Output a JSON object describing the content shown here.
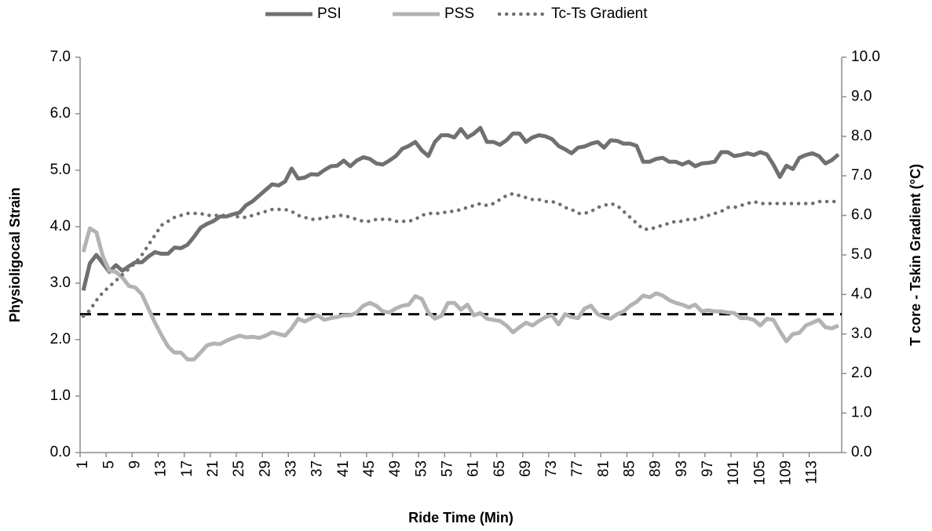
{
  "chart_data": {
    "type": "line",
    "xlabel": "Ride Time (Min)",
    "ylabel": "Physioligocal Strain",
    "y2label": "T core - Tskin Gradient (°C)",
    "categories": [
      "1",
      null,
      null,
      null,
      "5",
      null,
      null,
      null,
      "9",
      null,
      null,
      null,
      "13",
      null,
      null,
      null,
      "17",
      null,
      null,
      null,
      "21",
      null,
      null,
      null,
      "25",
      null,
      null,
      null,
      "29",
      null,
      null,
      null,
      "33",
      null,
      null,
      null,
      "37",
      null,
      null,
      null,
      "41",
      null,
      null,
      null,
      "45",
      null,
      null,
      null,
      "49",
      null,
      null,
      null,
      "53",
      null,
      null,
      null,
      "57",
      null,
      null,
      null,
      "61",
      null,
      null,
      null,
      "65",
      null,
      null,
      null,
      "69",
      null,
      null,
      null,
      "73",
      null,
      null,
      null,
      "77",
      null,
      null,
      null,
      "81",
      null,
      null,
      null,
      "85",
      null,
      null,
      null,
      "89",
      null,
      null,
      null,
      "93",
      null,
      null,
      null,
      "97",
      null,
      null,
      null,
      "101",
      null,
      null,
      null,
      "105",
      null,
      null,
      null,
      "109",
      null,
      null,
      null,
      "113",
      null,
      null,
      null,
      null
    ],
    "ylim": [
      0,
      7
    ],
    "yticks": [
      {
        "value": 0,
        "label": "0.0"
      },
      {
        "value": 1,
        "label": "1.0"
      },
      {
        "value": 2,
        "label": "2.0"
      },
      {
        "value": 3,
        "label": "3.0"
      },
      {
        "value": 4,
        "label": "4.0"
      },
      {
        "value": 5,
        "label": "5.0"
      },
      {
        "value": 6,
        "label": "6.0"
      },
      {
        "value": 7,
        "label": "7.0"
      }
    ],
    "y2lim": [
      0,
      10
    ],
    "y2ticks": [
      {
        "value": 0,
        "label": "0.0"
      },
      {
        "value": 1,
        "label": "1.0"
      },
      {
        "value": 2,
        "label": "2.0"
      },
      {
        "value": 3,
        "label": "3.0"
      },
      {
        "value": 4,
        "label": "4.0"
      },
      {
        "value": 5,
        "label": "5.0"
      },
      {
        "value": 6,
        "label": "6.0"
      },
      {
        "value": 7,
        "label": "7.0"
      },
      {
        "value": 8,
        "label": "8.0"
      },
      {
        "value": 9,
        "label": "9.0"
      },
      {
        "value": 10,
        "label": "10.0"
      }
    ],
    "legend": "top",
    "reference_line": {
      "value": 3.5,
      "axis": "y2",
      "color": "#000000",
      "style": "dashed"
    },
    "series": [
      {
        "name": "PSI",
        "color": "#707070",
        "style": "solid",
        "values": [
          2.87,
          3.35,
          3.5,
          3.35,
          3.2,
          3.32,
          3.22,
          3.3,
          3.37,
          3.37,
          3.47,
          3.55,
          3.52,
          3.52,
          3.63,
          3.62,
          3.68,
          3.82,
          3.98,
          4.05,
          4.1,
          4.18,
          4.18,
          4.22,
          4.25,
          4.38,
          4.45,
          4.55,
          4.65,
          4.75,
          4.73,
          4.8,
          5.03,
          4.85,
          4.87,
          4.93,
          4.92,
          5.0,
          5.07,
          5.08,
          5.17,
          5.07,
          5.17,
          5.23,
          5.2,
          5.12,
          5.1,
          5.17,
          5.25,
          5.38,
          5.43,
          5.5,
          5.35,
          5.25,
          5.5,
          5.62,
          5.62,
          5.58,
          5.73,
          5.58,
          5.65,
          5.75,
          5.5,
          5.5,
          5.45,
          5.53,
          5.65,
          5.65,
          5.5,
          5.58,
          5.62,
          5.6,
          5.55,
          5.43,
          5.37,
          5.3,
          5.4,
          5.42,
          5.47,
          5.5,
          5.4,
          5.53,
          5.52,
          5.47,
          5.47,
          5.43,
          5.15,
          5.15,
          5.2,
          5.22,
          5.15,
          5.15,
          5.1,
          5.15,
          5.07,
          5.12,
          5.13,
          5.15,
          5.32,
          5.32,
          5.25,
          5.27,
          5.3,
          5.27,
          5.32,
          5.28,
          5.1,
          4.88,
          5.08,
          5.02,
          5.22,
          5.27,
          5.3,
          5.25,
          5.12,
          5.18,
          5.28
        ]
      },
      {
        "name": "PSS",
        "color": "#b3b3b3",
        "style": "solid",
        "values": [
          3.55,
          3.97,
          3.9,
          3.47,
          3.22,
          3.2,
          3.1,
          2.95,
          2.92,
          2.8,
          2.55,
          2.3,
          2.08,
          1.88,
          1.77,
          1.77,
          1.65,
          1.65,
          1.77,
          1.9,
          1.93,
          1.92,
          1.98,
          2.03,
          2.07,
          2.04,
          2.05,
          2.03,
          2.07,
          2.13,
          2.1,
          2.07,
          2.2,
          2.37,
          2.32,
          2.38,
          2.43,
          2.35,
          2.38,
          2.4,
          2.43,
          2.43,
          2.48,
          2.6,
          2.65,
          2.6,
          2.5,
          2.48,
          2.55,
          2.6,
          2.62,
          2.77,
          2.72,
          2.48,
          2.37,
          2.42,
          2.65,
          2.65,
          2.53,
          2.62,
          2.43,
          2.47,
          2.37,
          2.35,
          2.33,
          2.25,
          2.13,
          2.22,
          2.3,
          2.25,
          2.33,
          2.4,
          2.43,
          2.27,
          2.45,
          2.4,
          2.38,
          2.55,
          2.6,
          2.45,
          2.4,
          2.37,
          2.45,
          2.5,
          2.6,
          2.67,
          2.78,
          2.75,
          2.82,
          2.78,
          2.7,
          2.65,
          2.62,
          2.57,
          2.62,
          2.5,
          2.52,
          2.5,
          2.5,
          2.48,
          2.47,
          2.38,
          2.38,
          2.35,
          2.25,
          2.37,
          2.35,
          2.15,
          1.97,
          2.1,
          2.12,
          2.25,
          2.3,
          2.35,
          2.22,
          2.2,
          2.25
        ]
      },
      {
        "name": "Tc-Ts Gradient",
        "color": "#707070",
        "style": "dotted",
        "axis": "y2",
        "values": [
          3.45,
          3.6,
          3.85,
          4.05,
          4.2,
          4.35,
          4.5,
          4.65,
          4.8,
          5.0,
          5.25,
          5.5,
          5.75,
          5.85,
          5.95,
          6.0,
          6.05,
          6.05,
          6.05,
          6.0,
          6.0,
          6.0,
          6.0,
          6.0,
          5.95,
          5.95,
          6.0,
          6.05,
          6.1,
          6.15,
          6.15,
          6.15,
          6.1,
          6.0,
          5.95,
          5.9,
          5.9,
          5.95,
          5.95,
          6.0,
          6.0,
          5.95,
          5.9,
          5.85,
          5.85,
          5.9,
          5.9,
          5.9,
          5.85,
          5.85,
          5.85,
          5.9,
          6.0,
          6.05,
          6.05,
          6.05,
          6.1,
          6.1,
          6.15,
          6.2,
          6.25,
          6.3,
          6.25,
          6.3,
          6.4,
          6.5,
          6.55,
          6.5,
          6.45,
          6.4,
          6.4,
          6.35,
          6.35,
          6.3,
          6.2,
          6.15,
          6.05,
          6.05,
          6.1,
          6.2,
          6.25,
          6.3,
          6.25,
          6.1,
          5.95,
          5.8,
          5.65,
          5.65,
          5.7,
          5.75,
          5.8,
          5.85,
          5.85,
          5.9,
          5.9,
          5.95,
          6.0,
          6.05,
          6.1,
          6.2,
          6.2,
          6.25,
          6.3,
          6.35,
          6.3,
          6.3,
          6.3,
          6.3,
          6.3,
          6.3,
          6.3,
          6.3,
          6.3,
          6.35,
          6.35,
          6.35,
          6.35
        ]
      }
    ]
  }
}
